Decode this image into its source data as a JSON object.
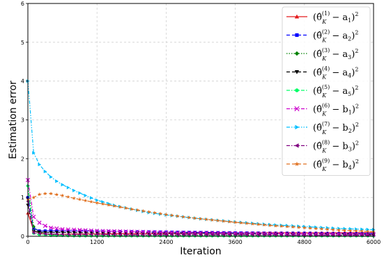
{
  "chart_data": {
    "type": "line",
    "xlabel": "Iteration",
    "ylabel": "Estimation error",
    "xlim": [
      0,
      6000
    ],
    "ylim": [
      0,
      6
    ],
    "xticks": [
      "0",
      "1200",
      "2400",
      "3600",
      "4800",
      "6000"
    ],
    "yticks": [
      "0",
      "1",
      "2",
      "3",
      "4",
      "5",
      "6"
    ],
    "grid": true,
    "legend_position": "top-right",
    "series": [
      {
        "name": "$(\\hat{\\theta}_K^{(1)} - a_1)^2$",
        "label_main": "(θ̂",
        "sup": "(1)",
        "rest": "− a",
        "sub": "1",
        "color": "#e41a1c",
        "marker": "triangle-up",
        "dash": "solid",
        "x": [
          0,
          100,
          200,
          300,
          400,
          600,
          800,
          1200,
          1800,
          2400,
          3000,
          3600,
          4200,
          4800,
          5400,
          6000
        ],
        "y": [
          0.6,
          0.15,
          0.08,
          0.06,
          0.05,
          0.05,
          0.06,
          0.06,
          0.07,
          0.07,
          0.08,
          0.08,
          0.09,
          0.09,
          0.09,
          0.1
        ]
      },
      {
        "name": "$(\\hat{\\theta}_K^{(2)} - a_2)^2$",
        "label_main": "(θ̂",
        "sup": "(2)",
        "rest": "− a",
        "sub": "2",
        "color": "#0000ff",
        "marker": "square",
        "dash": "dashed",
        "x": [
          0,
          100,
          200,
          300,
          400,
          600,
          800,
          1200,
          1800,
          2400,
          3000,
          3600,
          4200,
          4800,
          5400,
          6000
        ],
        "y": [
          1.0,
          0.2,
          0.14,
          0.14,
          0.14,
          0.14,
          0.14,
          0.13,
          0.12,
          0.11,
          0.1,
          0.09,
          0.08,
          0.08,
          0.07,
          0.07
        ]
      },
      {
        "name": "$(\\hat{\\theta}_K^{(3)} - a_3)^2$",
        "label_main": "(θ̂",
        "sup": "(3)",
        "rest": "− a",
        "sub": "3",
        "color": "#008000",
        "marker": "diamond",
        "dash": "dotted",
        "x": [
          0,
          100,
          200,
          300,
          400,
          600,
          800,
          1200,
          1800,
          2400,
          3000,
          3600,
          4200,
          4800,
          5400,
          6000
        ],
        "y": [
          1.3,
          0.25,
          0.1,
          0.06,
          0.04,
          0.03,
          0.02,
          0.02,
          0.02,
          0.02,
          0.02,
          0.02,
          0.02,
          0.02,
          0.02,
          0.02
        ]
      },
      {
        "name": "$(\\hat{\\theta}_K^{(4)} - a_4)^2$",
        "label_main": "(θ̂",
        "sup": "(4)",
        "rest": "− a",
        "sub": "4",
        "color": "#000000",
        "marker": "triangle-down",
        "dash": "dashed",
        "x": [
          0,
          100,
          200,
          300,
          400,
          600,
          800,
          1200,
          1800,
          2400,
          3000,
          3600,
          4200,
          4800,
          5400,
          6000
        ],
        "y": [
          0.8,
          0.13,
          0.11,
          0.1,
          0.1,
          0.1,
          0.1,
          0.09,
          0.09,
          0.08,
          0.08,
          0.07,
          0.07,
          0.06,
          0.06,
          0.05
        ]
      },
      {
        "name": "$(\\hat{\\theta}_K^{(5)} - a_5)^2$",
        "label_main": "(θ̂",
        "sup": "(5)",
        "rest": "− a",
        "sub": "5",
        "color": "#00ff66",
        "marker": "circle",
        "dash": "dashdot",
        "x": [
          0,
          100,
          200,
          300,
          400,
          600,
          800,
          1200,
          1800,
          2400,
          3000,
          3600,
          4200,
          4800,
          5400,
          6000
        ],
        "y": [
          1.3,
          0.08,
          0.04,
          0.03,
          0.02,
          0.02,
          0.01,
          0.01,
          0.01,
          0.01,
          0.01,
          0.01,
          0.01,
          0.01,
          0.01,
          0.01
        ]
      },
      {
        "name": "$(\\hat{\\theta}_K^{(6)} - b_1)^2$",
        "label_main": "(θ̂",
        "sup": "(6)",
        "rest": "− b",
        "sub": "1",
        "color": "#cc00cc",
        "marker": "x",
        "dash": "dashdot",
        "x": [
          0,
          100,
          200,
          300,
          400,
          600,
          800,
          1200,
          1800,
          2400,
          3000,
          3600,
          4200,
          4800,
          5400,
          6000
        ],
        "y": [
          1.45,
          0.5,
          0.35,
          0.27,
          0.22,
          0.18,
          0.17,
          0.14,
          0.12,
          0.1,
          0.09,
          0.08,
          0.07,
          0.06,
          0.06,
          0.05
        ]
      },
      {
        "name": "$(\\hat{\\theta}_K^{(7)} - b_2)^2$",
        "label_main": "(θ̂",
        "sup": "(7)",
        "rest": "− b",
        "sub": "2",
        "color": "#00bfff",
        "marker": "triangle-right",
        "dash": "dashdotdot",
        "x": [
          0,
          100,
          200,
          300,
          400,
          500,
          600,
          800,
          1000,
          1200,
          1500,
          1800,
          2100,
          2400,
          3000,
          3600,
          4200,
          4800,
          5400,
          6000
        ],
        "y": [
          4.0,
          2.15,
          1.85,
          1.67,
          1.53,
          1.42,
          1.33,
          1.18,
          1.05,
          0.93,
          0.8,
          0.7,
          0.61,
          0.55,
          0.45,
          0.37,
          0.3,
          0.25,
          0.2,
          0.17
        ]
      },
      {
        "name": "$(\\hat{\\theta}_K^{(8)} - b_3)^2$",
        "label_main": "(θ̂",
        "sup": "(8)",
        "rest": "− b",
        "sub": "3",
        "color": "#800080",
        "marker": "triangle-left",
        "dash": "dashdot",
        "x": [
          0,
          100,
          200,
          300,
          400,
          600,
          800,
          1200,
          1800,
          2400,
          3000,
          3600,
          4200,
          4800,
          5400,
          6000
        ],
        "y": [
          0.9,
          0.09,
          0.07,
          0.06,
          0.06,
          0.05,
          0.05,
          0.05,
          0.04,
          0.04,
          0.04,
          0.04,
          0.04,
          0.03,
          0.03,
          0.03
        ]
      },
      {
        "name": "$(\\hat{\\theta}_K^{(9)} - b_4)^2$",
        "label_main": "(θ̂",
        "sup": "(9)",
        "rest": "− b",
        "sub": "4",
        "color": "#e07020",
        "marker": "star",
        "dash": "dashed",
        "x": [
          0,
          100,
          200,
          300,
          400,
          600,
          800,
          1000,
          1200,
          1500,
          1800,
          2100,
          2400,
          2700,
          3000,
          3600,
          4200,
          4800,
          5400,
          6000
        ],
        "y": [
          0.95,
          1.0,
          1.08,
          1.1,
          1.1,
          1.05,
          0.98,
          0.92,
          0.86,
          0.78,
          0.7,
          0.63,
          0.56,
          0.5,
          0.45,
          0.36,
          0.28,
          0.22,
          0.16,
          0.12
        ]
      }
    ]
  }
}
